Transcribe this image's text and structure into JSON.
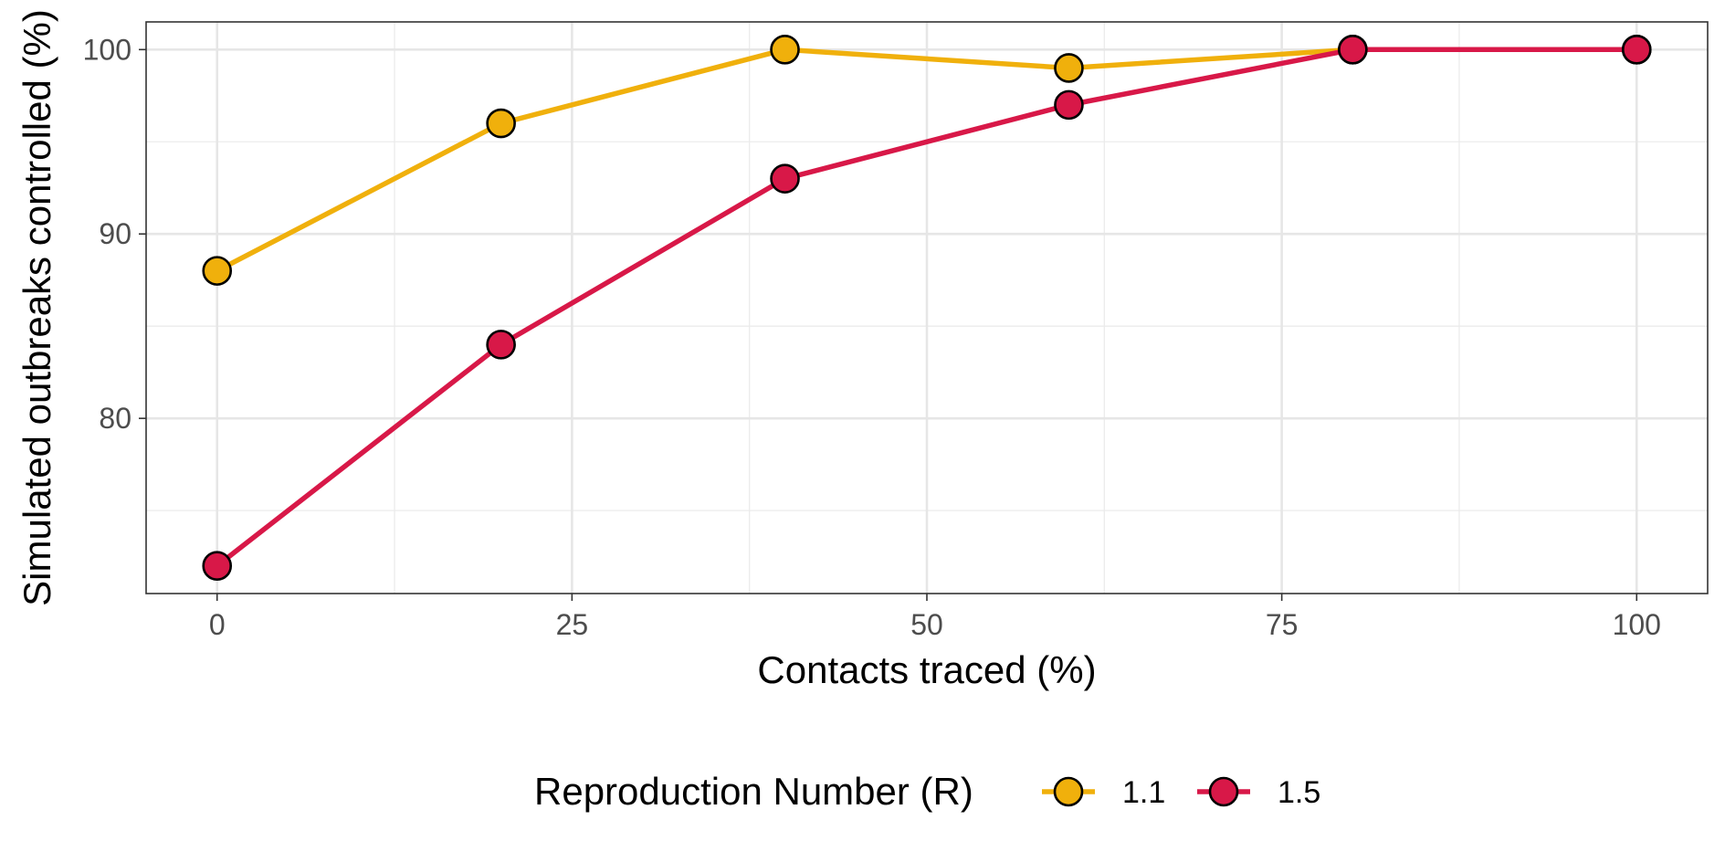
{
  "chart_data": {
    "type": "line",
    "title": "",
    "xlabel": "Contacts traced (%)",
    "ylabel": "Simulated outbreaks controlled (%)",
    "xlim": [
      -5,
      105
    ],
    "ylim": [
      70.5,
      101.5
    ],
    "x_ticks": [
      0,
      25,
      50,
      75,
      100
    ],
    "x_tick_labels": [
      "0",
      "25",
      "50",
      "75",
      "100"
    ],
    "y_ticks": [
      80,
      90,
      100
    ],
    "y_tick_labels": [
      "80",
      "90",
      "100"
    ],
    "grid": true,
    "legend": {
      "title": "Reproduction Number (R)",
      "position": "bottom"
    },
    "series": [
      {
        "name": "1.1",
        "color": "#F0B00C",
        "x": [
          0,
          20,
          40,
          60,
          80,
          100
        ],
        "y": [
          88,
          96,
          100,
          99,
          100,
          100
        ]
      },
      {
        "name": "1.5",
        "color": "#D81848",
        "x": [
          0,
          20,
          40,
          60,
          80,
          100
        ],
        "y": [
          72,
          84,
          93,
          97,
          100,
          100
        ]
      }
    ]
  }
}
